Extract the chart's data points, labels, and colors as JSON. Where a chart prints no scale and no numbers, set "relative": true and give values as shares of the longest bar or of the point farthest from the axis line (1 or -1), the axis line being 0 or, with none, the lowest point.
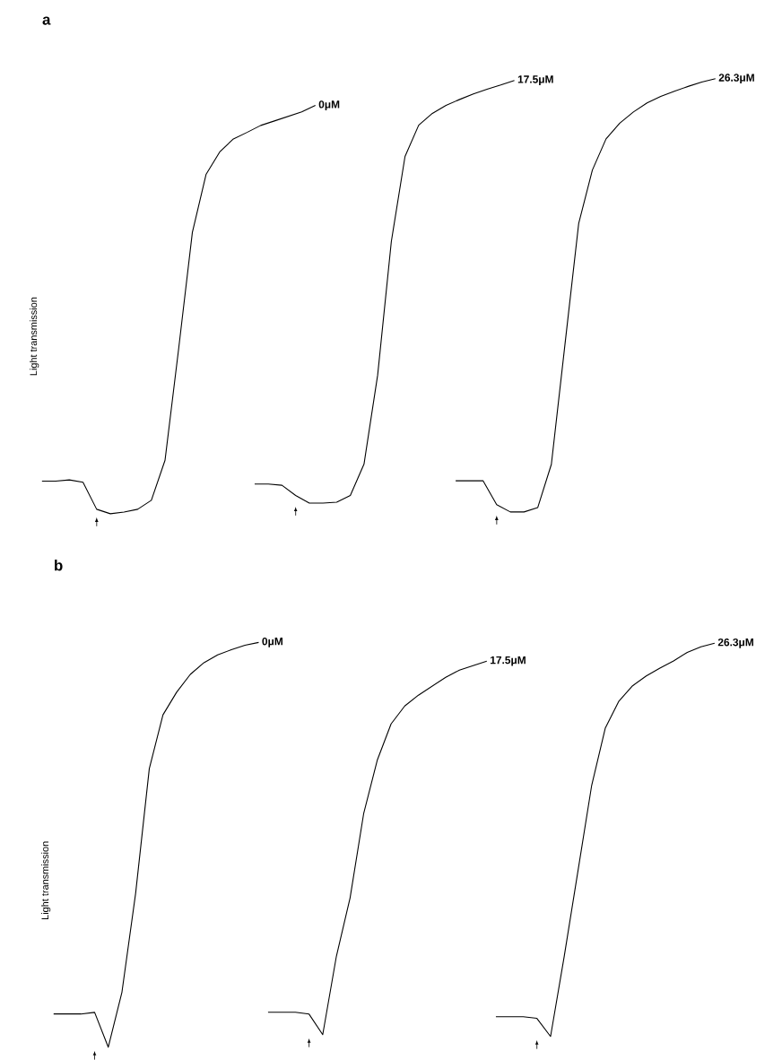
{
  "chart_data": [
    {
      "type": "line",
      "title": "a",
      "ylabel": "Light transmission",
      "relative": true,
      "categories": [
        null,
        null,
        null,
        null,
        null,
        null,
        null,
        null,
        null,
        null,
        null,
        null,
        null,
        null,
        null,
        null,
        null,
        null,
        null,
        null,
        null
      ],
      "series": [
        {
          "name": "0μM",
          "color": "#000000",
          "values": [
            0.08,
            0.08,
            0.083,
            0.077,
            0.011,
            0,
            0.004,
            0.011,
            0.033,
            0.131,
            0.405,
            0.689,
            0.831,
            0.886,
            0.918,
            0.934,
            0.951,
            0.962,
            0.973,
            0.984,
            1
          ]
        }
      ]
    },
    {
      "type": "line",
      "relative": true,
      "categories": [
        null,
        null,
        null,
        null,
        null,
        null,
        null,
        null,
        null,
        null,
        null,
        null,
        null,
        null,
        null,
        null,
        null,
        null,
        null,
        null
      ],
      "series": [
        {
          "name": "17.5μM",
          "color": "#000000",
          "values": [
            0.045,
            0.045,
            0.042,
            0.018,
            0,
            0,
            0.002,
            0.018,
            0.092,
            0.303,
            0.619,
            0.82,
            0.894,
            0.922,
            0.941,
            0.955,
            0.968,
            0.979,
            0.989,
            1
          ]
        }
      ]
    },
    {
      "type": "line",
      "relative": true,
      "categories": [
        null,
        null,
        null,
        null,
        null,
        null,
        null,
        null,
        null,
        null,
        null,
        null,
        null,
        null,
        null,
        null,
        null,
        null,
        null,
        null
      ],
      "series": [
        {
          "name": "26.3μM",
          "color": "#000000",
          "values": [
            0.072,
            0.072,
            0.072,
            0.017,
            0,
            0,
            0.01,
            0.11,
            0.388,
            0.666,
            0.789,
            0.861,
            0.897,
            0.923,
            0.944,
            0.959,
            0.971,
            0.982,
            0.992,
            1
          ]
        }
      ]
    },
    {
      "type": "line",
      "title": "b",
      "ylabel": "Light transmission",
      "relative": true,
      "categories": [
        null,
        null,
        null,
        null,
        null,
        null,
        null,
        null,
        null,
        null,
        null,
        null,
        null,
        null,
        null,
        null
      ],
      "series": [
        {
          "name": "0μM",
          "color": "#000000",
          "values": [
            0.082,
            0.082,
            0.082,
            0.086,
            0,
            0.136,
            0.38,
            0.688,
            0.821,
            0.877,
            0.921,
            0.95,
            0.969,
            0.982,
            0.993,
            1
          ]
        }
      ]
    },
    {
      "type": "line",
      "relative": true,
      "categories": [
        null,
        null,
        null,
        null,
        null,
        null,
        null,
        null,
        null,
        null,
        null,
        null,
        null,
        null,
        null,
        null,
        null
      ],
      "series": [
        {
          "name": "17.5μM",
          "color": "#000000",
          "values": [
            0.06,
            0.06,
            0.06,
            0.055,
            0,
            0.21,
            0.366,
            0.593,
            0.736,
            0.832,
            0.88,
            0.909,
            0.933,
            0.957,
            0.976,
            0.988,
            1
          ]
        }
      ]
    },
    {
      "type": "line",
      "relative": true,
      "categories": [
        null,
        null,
        null,
        null,
        null,
        null,
        null,
        null,
        null,
        null,
        null,
        null,
        null,
        null,
        null,
        null,
        null
      ],
      "series": [
        {
          "name": "26.3μM",
          "color": "#000000",
          "values": [
            0.05,
            0.05,
            0.05,
            0.046,
            0,
            0.204,
            0.42,
            0.637,
            0.784,
            0.853,
            0.892,
            0.917,
            0.937,
            0.955,
            0.977,
            0.991,
            1
          ]
        }
      ]
    }
  ]
}
